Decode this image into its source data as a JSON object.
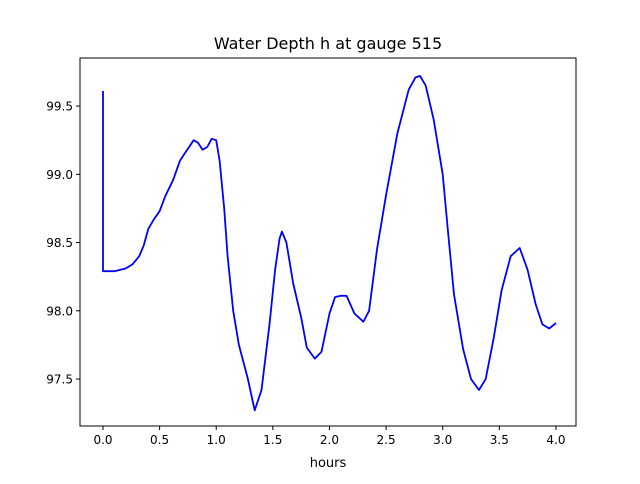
{
  "chart_data": {
    "type": "line",
    "title": "Water Depth h at gauge 515",
    "xlabel": "hours",
    "ylabel": "",
    "xlim": [
      -0.203,
      4.177
    ],
    "ylim": [
      97.156,
      99.852
    ],
    "xticks": [
      0.0,
      0.5,
      1.0,
      1.5,
      2.0,
      2.5,
      3.0,
      3.5,
      4.0
    ],
    "xtick_labels": [
      "0.0",
      "0.5",
      "1.0",
      "1.5",
      "2.0",
      "2.5",
      "3.0",
      "3.5",
      "4.0"
    ],
    "yticks": [
      97.5,
      98.0,
      98.5,
      99.0,
      99.5
    ],
    "ytick_labels": [
      "97.5",
      "98.0",
      "98.5",
      "99.0",
      "99.5"
    ],
    "grid": false,
    "series": [
      {
        "name": "h",
        "color": "#0000ff",
        "x": [
          0,
          0,
          0.1,
          0.2,
          0.26,
          0.32,
          0.36,
          0.4,
          0.45,
          0.5,
          0.55,
          0.62,
          0.68,
          0.72,
          0.76,
          0.8,
          0.84,
          0.88,
          0.92,
          0.96,
          1.0,
          1.03,
          1.07,
          1.1,
          1.15,
          1.2,
          1.28,
          1.34,
          1.4,
          1.47,
          1.52,
          1.56,
          1.58,
          1.62,
          1.68,
          1.75,
          1.8,
          1.87,
          1.93,
          2.0,
          2.05,
          2.1,
          2.15,
          2.22,
          2.3,
          2.35,
          2.42,
          2.5,
          2.6,
          2.7,
          2.76,
          2.8,
          2.85,
          2.92,
          3.0,
          3.05,
          3.1,
          3.18,
          3.25,
          3.32,
          3.38,
          3.45,
          3.52,
          3.6,
          3.68,
          3.75,
          3.82,
          3.88,
          3.94,
          4.0
        ],
        "y": [
          99.61,
          98.29,
          98.29,
          98.31,
          98.34,
          98.4,
          98.48,
          98.6,
          98.67,
          98.73,
          98.84,
          98.96,
          99.1,
          99.15,
          99.2,
          99.25,
          99.23,
          99.18,
          99.2,
          99.26,
          99.25,
          99.1,
          98.75,
          98.4,
          98.0,
          97.75,
          97.5,
          97.27,
          97.42,
          97.9,
          98.3,
          98.53,
          98.58,
          98.5,
          98.2,
          97.95,
          97.73,
          97.65,
          97.7,
          97.98,
          98.1,
          98.11,
          98.11,
          97.98,
          97.92,
          98.0,
          98.45,
          98.85,
          99.3,
          99.62,
          99.71,
          99.72,
          99.65,
          99.4,
          99.0,
          98.55,
          98.12,
          97.72,
          97.5,
          97.42,
          97.5,
          97.8,
          98.15,
          98.4,
          98.46,
          98.3,
          98.05,
          97.9,
          97.87,
          97.91
        ]
      }
    ]
  }
}
